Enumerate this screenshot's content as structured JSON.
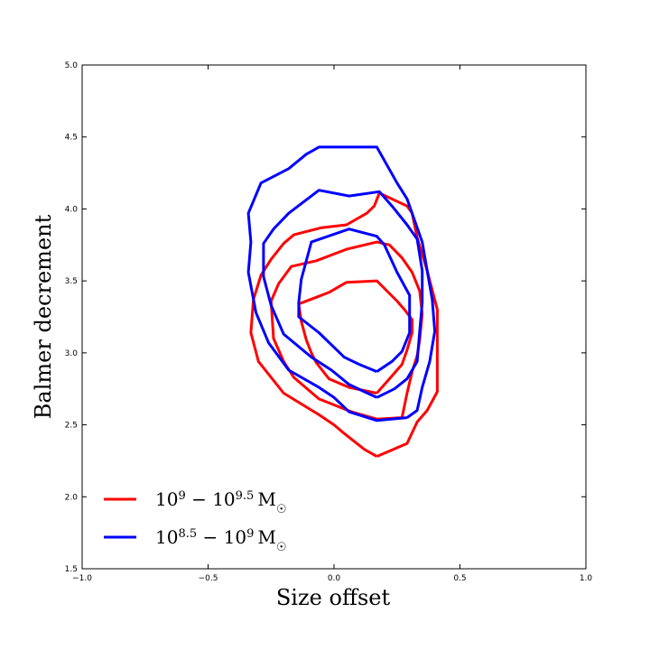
{
  "chart_data": {
    "type": "line",
    "subtype": "contour",
    "title": "",
    "xlabel": "Size offset",
    "ylabel": "Balmer decrement",
    "xlim": [
      -1.0,
      1.0
    ],
    "ylim": [
      1.5,
      5.0
    ],
    "xticks": [
      "−1.0",
      "−0.5",
      "0.0",
      "0.5",
      "1.0"
    ],
    "xtick_values": [
      -1.0,
      -0.5,
      0.0,
      0.5,
      1.0
    ],
    "yticks": [
      "1.5",
      "2.0",
      "2.5",
      "3.0",
      "3.5",
      "4.0",
      "4.5",
      "5.0"
    ],
    "ytick_values": [
      1.5,
      2.0,
      2.5,
      3.0,
      3.5,
      4.0,
      4.5,
      5.0
    ],
    "grid": false,
    "legend_position": "bottom-left",
    "series": [
      {
        "name": "10⁹ − 10⁹·⁵ M☉",
        "legend_base": "10",
        "legend_sup1": "9",
        "legend_mid": " − 10",
        "legend_sup2": "9.5",
        "legend_unit": "M",
        "legend_sun": "☉",
        "color": "#ff0000",
        "contours": [
          [
            [
              0.17,
              2.28
            ],
            [
              0.12,
              2.33
            ],
            [
              0.04,
              2.44
            ],
            [
              0.0,
              2.5
            ],
            [
              -0.06,
              2.57
            ],
            [
              -0.2,
              2.72
            ],
            [
              -0.3,
              2.94
            ],
            [
              -0.33,
              3.14
            ],
            [
              -0.32,
              3.37
            ],
            [
              -0.29,
              3.54
            ],
            [
              -0.25,
              3.65
            ],
            [
              -0.2,
              3.76
            ],
            [
              -0.16,
              3.82
            ],
            [
              -0.05,
              3.87
            ],
            [
              0.05,
              3.89
            ],
            [
              0.13,
              3.97
            ],
            [
              0.16,
              4.02
            ],
            [
              0.18,
              4.11
            ],
            [
              0.29,
              4.02
            ],
            [
              0.31,
              3.97
            ],
            [
              0.33,
              3.8
            ],
            [
              0.37,
              3.57
            ],
            [
              0.41,
              3.3
            ],
            [
              0.41,
              3.13
            ],
            [
              0.41,
              2.94
            ],
            [
              0.41,
              2.73
            ],
            [
              0.37,
              2.6
            ],
            [
              0.33,
              2.52
            ],
            [
              0.29,
              2.37
            ],
            [
              0.17,
              2.28
            ]
          ],
          [
            [
              0.27,
              2.55
            ],
            [
              0.17,
              2.54
            ],
            [
              0.07,
              2.59
            ],
            [
              -0.06,
              2.68
            ],
            [
              -0.16,
              2.83
            ],
            [
              -0.2,
              2.94
            ],
            [
              -0.24,
              3.1
            ],
            [
              -0.25,
              3.36
            ],
            [
              -0.22,
              3.48
            ],
            [
              -0.17,
              3.6
            ],
            [
              -0.07,
              3.64
            ],
            [
              0.05,
              3.72
            ],
            [
              0.17,
              3.77
            ],
            [
              0.22,
              3.75
            ],
            [
              0.27,
              3.66
            ],
            [
              0.31,
              3.56
            ],
            [
              0.34,
              3.43
            ],
            [
              0.35,
              3.27
            ],
            [
              0.34,
              3.09
            ],
            [
              0.33,
              2.98
            ],
            [
              0.31,
              2.87
            ],
            [
              0.29,
              2.72
            ],
            [
              0.27,
              2.55
            ]
          ],
          [
            [
              0.17,
              2.72
            ],
            [
              0.06,
              2.76
            ],
            [
              -0.02,
              2.82
            ],
            [
              -0.07,
              2.93
            ],
            [
              -0.09,
              3.0
            ],
            [
              -0.11,
              3.09
            ],
            [
              -0.13,
              3.22
            ],
            [
              -0.14,
              3.34
            ],
            [
              -0.08,
              3.38
            ],
            [
              -0.02,
              3.42
            ],
            [
              0.05,
              3.49
            ],
            [
              0.17,
              3.5
            ],
            [
              0.25,
              3.36
            ],
            [
              0.28,
              3.3
            ],
            [
              0.31,
              3.23
            ],
            [
              0.31,
              3.14
            ],
            [
              0.29,
              3.02
            ],
            [
              0.27,
              2.92
            ],
            [
              0.22,
              2.82
            ],
            [
              0.17,
              2.72
            ]
          ]
        ]
      },
      {
        "name": "10⁸·⁵ − 10⁹ M☉",
        "legend_base": "10",
        "legend_sup1": "8.5",
        "legend_mid": " − 10",
        "legend_sup2": "9",
        "legend_unit": "M",
        "legend_sun": "☉",
        "color": "#0000ff",
        "contours": [
          [
            [
              0.29,
              2.55
            ],
            [
              0.17,
              2.53
            ],
            [
              0.06,
              2.59
            ],
            [
              0.0,
              2.69
            ],
            [
              -0.06,
              2.76
            ],
            [
              -0.18,
              2.88
            ],
            [
              -0.26,
              3.07
            ],
            [
              -0.31,
              3.28
            ],
            [
              -0.34,
              3.56
            ],
            [
              -0.33,
              3.77
            ],
            [
              -0.34,
              3.97
            ],
            [
              -0.29,
              4.18
            ],
            [
              -0.18,
              4.28
            ],
            [
              -0.11,
              4.38
            ],
            [
              -0.06,
              4.43
            ],
            [
              0.06,
              4.43
            ],
            [
              0.17,
              4.43
            ],
            [
              0.25,
              4.18
            ],
            [
              0.29,
              4.07
            ],
            [
              0.31,
              3.97
            ],
            [
              0.35,
              3.77
            ],
            [
              0.37,
              3.57
            ],
            [
              0.39,
              3.37
            ],
            [
              0.4,
              3.15
            ],
            [
              0.38,
              2.94
            ],
            [
              0.35,
              2.76
            ],
            [
              0.33,
              2.6
            ],
            [
              0.29,
              2.55
            ]
          ],
          [
            [
              0.17,
              2.69
            ],
            [
              0.12,
              2.73
            ],
            [
              0.06,
              2.78
            ],
            [
              -0.01,
              2.88
            ],
            [
              -0.09,
              2.97
            ],
            [
              -0.2,
              3.13
            ],
            [
              -0.25,
              3.33
            ],
            [
              -0.28,
              3.53
            ],
            [
              -0.28,
              3.76
            ],
            [
              -0.24,
              3.86
            ],
            [
              -0.18,
              3.97
            ],
            [
              -0.06,
              4.13
            ],
            [
              0.06,
              4.09
            ],
            [
              0.18,
              4.12
            ],
            [
              0.23,
              4.02
            ],
            [
              0.29,
              3.89
            ],
            [
              0.33,
              3.79
            ],
            [
              0.35,
              3.57
            ],
            [
              0.35,
              3.35
            ],
            [
              0.34,
              3.15
            ],
            [
              0.33,
              2.94
            ],
            [
              0.29,
              2.82
            ],
            [
              0.24,
              2.75
            ],
            [
              0.17,
              2.69
            ]
          ],
          [
            [
              0.17,
              2.87
            ],
            [
              0.1,
              2.92
            ],
            [
              0.04,
              2.97
            ],
            [
              -0.06,
              3.14
            ],
            [
              -0.14,
              3.25
            ],
            [
              -0.14,
              3.35
            ],
            [
              -0.13,
              3.51
            ],
            [
              -0.09,
              3.77
            ],
            [
              0.06,
              3.86
            ],
            [
              0.17,
              3.81
            ],
            [
              0.2,
              3.75
            ],
            [
              0.25,
              3.56
            ],
            [
              0.3,
              3.4
            ],
            [
              0.3,
              3.14
            ],
            [
              0.27,
              3.01
            ],
            [
              0.23,
              2.94
            ],
            [
              0.17,
              2.87
            ]
          ]
        ]
      }
    ]
  }
}
